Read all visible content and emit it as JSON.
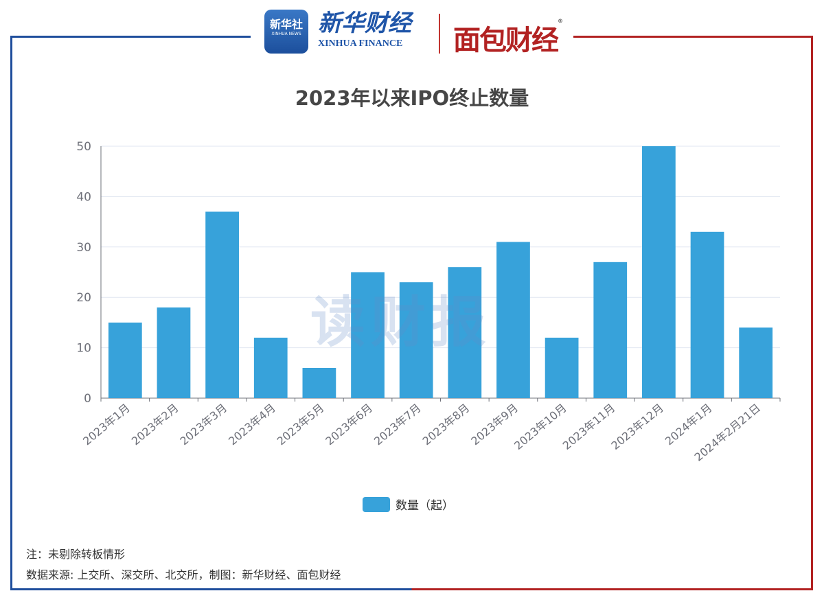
{
  "header": {
    "logo_xinhua_news": "新华社 XINHUA NEWS",
    "logo_xinhua_finance": "新华财经",
    "logo_xinhua_finance_en": "XINHUA FINANCE",
    "logo_mianbao": "面包财经"
  },
  "watermark": "读财报",
  "colors": {
    "bar": "#37a2da",
    "frame_left": "#1f4e9c",
    "frame_right": "#b22222"
  },
  "chart_data": {
    "type": "bar",
    "title": "2023年以来IPO终止数量",
    "categories": [
      "2023年1月",
      "2023年2月",
      "2023年3月",
      "2023年4月",
      "2023年5月",
      "2023年6月",
      "2023年7月",
      "2023年8月",
      "2023年9月",
      "2023年10月",
      "2023年11月",
      "2023年12月",
      "2024年1月",
      "2024年2月21日"
    ],
    "series": [
      {
        "name": "数量（起）",
        "values": [
          15,
          18,
          37,
          12,
          6,
          25,
          23,
          26,
          31,
          12,
          27,
          50,
          33,
          14
        ]
      }
    ],
    "ylim": [
      0,
      50
    ],
    "yticks": [
      0,
      10,
      20,
      30,
      40,
      50
    ],
    "grid": true,
    "legend": "bottom"
  },
  "notes": {
    "note": "注：未剔除转板情形",
    "source": "数据来源: 上交所、深交所、北交所，制图：新华财经、面包财经"
  }
}
